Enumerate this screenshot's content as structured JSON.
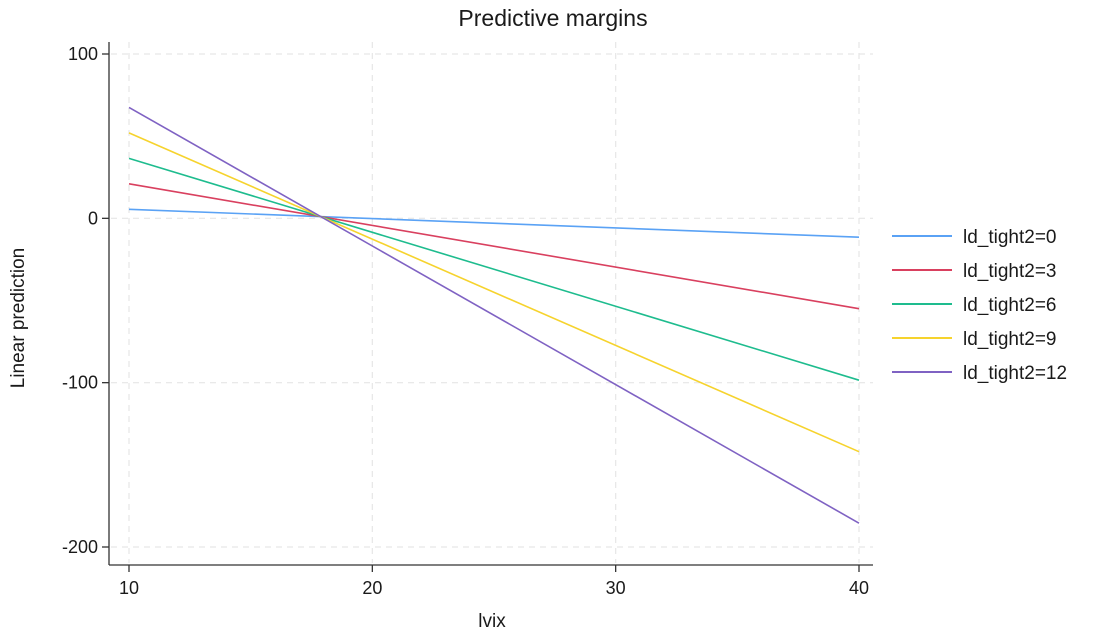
{
  "chart_data": {
    "type": "line",
    "title": "Predictive margins",
    "xlabel": "lvix",
    "ylabel": "Linear prediction",
    "xlim": [
      10,
      40
    ],
    "ylim": [
      -200,
      100
    ],
    "x_ticks": [
      10,
      20,
      30,
      40
    ],
    "y_ticks": [
      100,
      0,
      -100,
      -200
    ],
    "x_tick_labels": [
      "10",
      "20",
      "30",
      "40"
    ],
    "y_tick_labels": [
      "100",
      "0",
      "-100",
      "-200"
    ],
    "grid": true,
    "legend_position": "right",
    "x": [
      10,
      40
    ],
    "series": [
      {
        "name": "ld_tight2=0",
        "color": "#5aa2f5",
        "values": [
          5.5,
          -11.5
        ]
      },
      {
        "name": "ld_tight2=3",
        "color": "#d9405f",
        "values": [
          21,
          -55
        ]
      },
      {
        "name": "ld_tight2=6",
        "color": "#1ebc8e",
        "values": [
          36.5,
          -98.5
        ]
      },
      {
        "name": "ld_tight2=9",
        "color": "#f6d32d",
        "values": [
          52,
          -142
        ]
      },
      {
        "name": "ld_tight2=12",
        "color": "#7f62c3",
        "values": [
          67.5,
          -185.5
        ]
      }
    ]
  }
}
